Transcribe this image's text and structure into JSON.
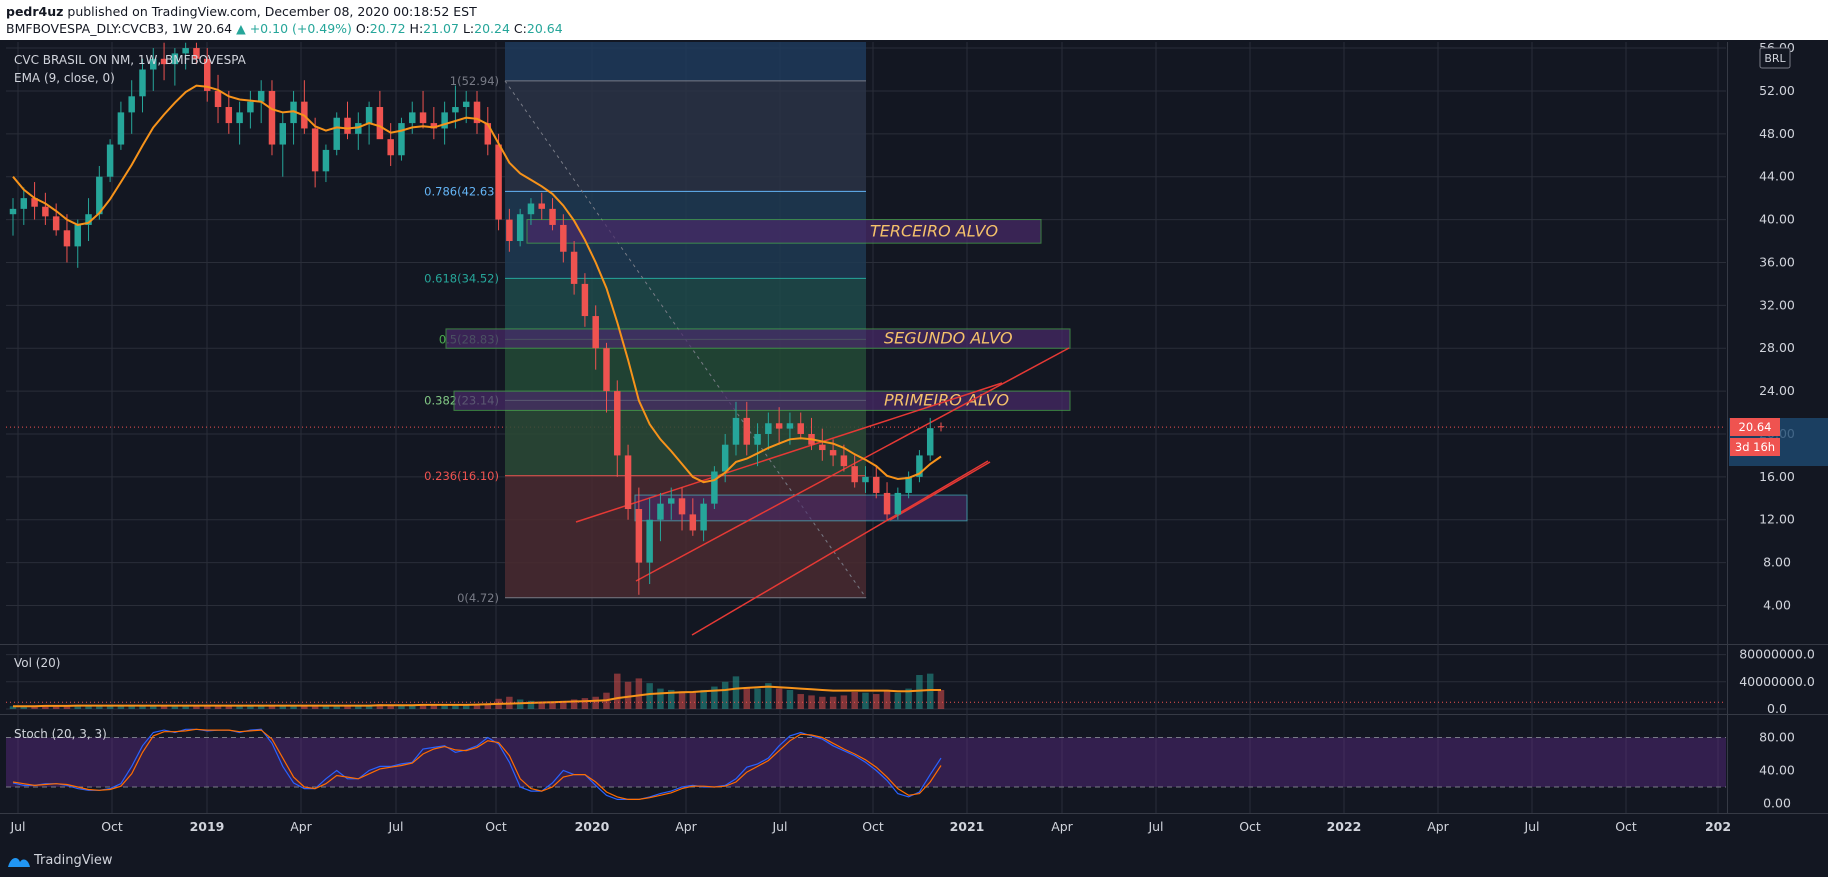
{
  "header": {
    "publisher": "pedr4uz",
    "published_text": " published on TradingView.com, December 08, 2020 00:18:52 EST",
    "symbol": "BMFBOVESPA_DLY:CVCB3, 1W",
    "last": "20.64",
    "change": "▲ +0.10 (+0.49%)",
    "o_label": "O:",
    "o": "20.72",
    "h_label": "H:",
    "h": "21.07",
    "l_label": "L:",
    "l": "20.24",
    "c_label": "C:",
    "c": "20.64"
  },
  "legend": {
    "title": "CVC BRASIL ON NM, 1W, BMFBOVESPA",
    "ema": "EMA (9, close, 0)",
    "vol": "Vol (20)",
    "stoch": "Stoch (20, 3, 3)",
    "currency": "BRL"
  },
  "price_tag": {
    "value": "20.64",
    "countdown": "3d 16h"
  },
  "footer": {
    "brand": "TradingView"
  },
  "colors": {
    "bg": "#131722",
    "up": "#26a69a",
    "down": "#ef5350",
    "ema": "#f7931a",
    "k_line": "#2962ff",
    "d_line": "#ff6d00",
    "stoch_band": "#5b2a86",
    "zone_box_border": "#4caf50",
    "target_text": "#f5c26b"
  },
  "chart_data": [
    {
      "type": "candlestick",
      "name": "price",
      "x_ticks": [
        "Jul",
        "Oct",
        "2019",
        "Apr",
        "Jul",
        "Oct",
        "2020",
        "Apr",
        "Jul",
        "Oct",
        "2021",
        "Apr",
        "Jul",
        "Oct",
        "2022",
        "Apr",
        "Jul",
        "Oct",
        "202"
      ],
      "y_ticks": [
        "56.00",
        "52.00",
        "48.00",
        "44.00",
        "40.00",
        "36.00",
        "32.00",
        "28.00",
        "24.00",
        "20.00",
        "16.00",
        "12.00",
        "8.00",
        "4.00"
      ],
      "ylim": [
        1.6,
        56.2
      ],
      "candles": [
        [
          40.5,
          42,
          38.5,
          41
        ],
        [
          41,
          43,
          39.5,
          42
        ],
        [
          42,
          43.5,
          40,
          41.2
        ],
        [
          41.2,
          42.5,
          39.5,
          40.3
        ],
        [
          40.3,
          41.5,
          38.5,
          39
        ],
        [
          39,
          40.5,
          36,
          37.5
        ],
        [
          37.5,
          40,
          35.5,
          39.5
        ],
        [
          39.5,
          42,
          38,
          40.5
        ],
        [
          40.5,
          45,
          40,
          44
        ],
        [
          44,
          47.5,
          43.5,
          47
        ],
        [
          47,
          51,
          46.5,
          50
        ],
        [
          50,
          53,
          48,
          51.5
        ],
        [
          51.5,
          55,
          50,
          54
        ],
        [
          54,
          56,
          52,
          55
        ],
        [
          55,
          56.5,
          53,
          54.5
        ],
        [
          54.5,
          56,
          52.5,
          55.5
        ],
        [
          55.5,
          56.5,
          54,
          56
        ],
        [
          56,
          56.5,
          54.5,
          55
        ],
        [
          55,
          56,
          51,
          52
        ],
        [
          52,
          53.5,
          49,
          50.5
        ],
        [
          50.5,
          52,
          48,
          49
        ],
        [
          49,
          51,
          47,
          50
        ],
        [
          50,
          52,
          48.5,
          51
        ],
        [
          51,
          53,
          49,
          52
        ],
        [
          52,
          53,
          46,
          47
        ],
        [
          47,
          50,
          44,
          49
        ],
        [
          49,
          52,
          47,
          51
        ],
        [
          51,
          53,
          48,
          48.5
        ],
        [
          48.5,
          49.5,
          43,
          44.5
        ],
        [
          44.5,
          47,
          43.5,
          46.5
        ],
        [
          46.5,
          50,
          46,
          49.5
        ],
        [
          49.5,
          51,
          47.5,
          48
        ],
        [
          48,
          50,
          46.5,
          49
        ],
        [
          49,
          51,
          47,
          50.5
        ],
        [
          50.5,
          52,
          48,
          47.5
        ],
        [
          47.5,
          49,
          45,
          46
        ],
        [
          46,
          49.5,
          45.5,
          49
        ],
        [
          49,
          51,
          48,
          50
        ],
        [
          50,
          52,
          48.5,
          49
        ],
        [
          49,
          50.5,
          47.5,
          48.5
        ],
        [
          48.5,
          51,
          47,
          50
        ],
        [
          50,
          52.5,
          48.5,
          50.5
        ],
        [
          50.5,
          52,
          49,
          51
        ],
        [
          51,
          52,
          48,
          49
        ],
        [
          49,
          50.5,
          46,
          47
        ],
        [
          47,
          48,
          39,
          40
        ],
        [
          40,
          41,
          37,
          38
        ],
        [
          38,
          41,
          37.5,
          40.5
        ],
        [
          40.5,
          42,
          39.5,
          41.5
        ],
        [
          41.5,
          42.5,
          40,
          41
        ],
        [
          41,
          42,
          39,
          39.5
        ],
        [
          39.5,
          40.5,
          36,
          37
        ],
        [
          37,
          38,
          33,
          34
        ],
        [
          34,
          35,
          30,
          31
        ],
        [
          31,
          32,
          26,
          28
        ],
        [
          28,
          28.5,
          22,
          24
        ],
        [
          24,
          25,
          16,
          18
        ],
        [
          18,
          19,
          12,
          13
        ],
        [
          13,
          15,
          5,
          8
        ],
        [
          8,
          14,
          6,
          12
        ],
        [
          12,
          14.5,
          10,
          13.5
        ],
        [
          13.5,
          15,
          12,
          14
        ],
        [
          14,
          15,
          11,
          12.5
        ],
        [
          12.5,
          14,
          10.5,
          11
        ],
        [
          11,
          14,
          10,
          13.5
        ],
        [
          13.5,
          17,
          13,
          16.5
        ],
        [
          16.5,
          20,
          15.5,
          19
        ],
        [
          19,
          23,
          18,
          21.5
        ],
        [
          21.5,
          23,
          18,
          19
        ],
        [
          19,
          21,
          17,
          20
        ],
        [
          20,
          22,
          18.5,
          21
        ],
        [
          21,
          22.5,
          19,
          20.5
        ],
        [
          20.5,
          22,
          19,
          21
        ],
        [
          21,
          22,
          19.5,
          20
        ],
        [
          20,
          21.5,
          18.5,
          19
        ],
        [
          19,
          20.5,
          17.5,
          18.5
        ],
        [
          18.5,
          19.5,
          17,
          18
        ],
        [
          18,
          19,
          16.5,
          17
        ],
        [
          17,
          18,
          15,
          15.5
        ],
        [
          15.5,
          17,
          14.5,
          16
        ],
        [
          16,
          17,
          14,
          14.5
        ],
        [
          14.5,
          15.5,
          12,
          12.5
        ],
        [
          12.5,
          15,
          12,
          14.5
        ],
        [
          14.5,
          16.5,
          14,
          16
        ],
        [
          16,
          18.5,
          15.5,
          18
        ],
        [
          18,
          21.5,
          17.5,
          20.54
        ],
        [
          20.72,
          21.07,
          20.24,
          20.64
        ]
      ],
      "ema": [
        44,
        42.8,
        42,
        41.5,
        40.8,
        40,
        39.5,
        39.7,
        40.6,
        41.9,
        43.5,
        45.1,
        46.9,
        48.6,
        49.8,
        50.9,
        51.9,
        52.5,
        52.4,
        52.1,
        51.5,
        51.2,
        51.1,
        51,
        50.3,
        50,
        50.1,
        49.7,
        48.7,
        48.3,
        48.6,
        48.5,
        48.6,
        49,
        48.7,
        48.1,
        48.3,
        48.6,
        48.7,
        48.6,
        48.9,
        49.2,
        49.5,
        49.4,
        48.9,
        47.1,
        45.3,
        44.3,
        43.7,
        43.1,
        42.4,
        41.3,
        39.9,
        38.1,
        36,
        33.6,
        30.4,
        26.9,
        23.1,
        20.9,
        19.5,
        18.4,
        17.2,
        16,
        15.5,
        15.7,
        16.4,
        17.4,
        17.7,
        18.2,
        18.7,
        19.1,
        19.5,
        19.6,
        19.5,
        19.3,
        19.1,
        18.7,
        18.1,
        17.6,
        17,
        16.1,
        15.8,
        15.9,
        16.3,
        17.2,
        17.9
      ]
    },
    {
      "type": "bar",
      "name": "Vol (20)",
      "y_ticks": [
        "80000000.0",
        "40000000.0",
        "0.0"
      ],
      "ylim": [
        0,
        86000000
      ],
      "values": [
        4,
        5,
        4,
        5,
        4,
        5,
        6,
        4,
        5,
        4,
        5,
        6,
        5,
        4,
        5,
        4,
        6,
        5,
        4,
        5,
        5,
        4,
        6,
        5,
        5,
        4,
        5,
        4,
        6,
        5,
        4,
        5,
        6,
        5,
        7,
        6,
        5,
        6,
        7,
        6,
        5,
        6,
        6,
        7,
        8,
        15,
        18,
        14,
        12,
        10,
        11,
        12,
        14,
        16,
        18,
        24,
        52,
        40,
        45,
        38,
        30,
        28,
        26,
        24,
        28,
        33,
        40,
        48,
        32,
        30,
        38,
        30,
        28,
        22,
        20,
        18,
        18,
        20,
        25,
        24,
        22,
        26,
        24,
        30,
        50,
        52,
        28
      ],
      "ma": [
        4,
        4,
        4,
        4.5,
        4.5,
        4.5,
        5,
        5,
        5,
        5,
        5,
        5,
        5,
        5,
        5,
        5,
        5,
        5,
        5,
        5,
        5,
        5,
        5,
        5,
        5,
        5,
        5,
        5,
        5,
        5,
        5,
        5,
        5,
        5,
        5.5,
        5.5,
        5.5,
        5.5,
        6,
        6,
        6,
        6,
        6,
        6.5,
        7,
        7.5,
        8,
        8.5,
        9,
        9.5,
        10,
        10.5,
        11,
        11.5,
        12,
        13,
        16,
        18,
        20,
        22,
        23,
        24,
        24.5,
        25,
        26,
        27,
        28,
        30,
        31,
        32,
        33,
        32,
        31,
        30,
        29,
        28,
        27,
        27,
        27,
        27,
        27,
        27,
        26,
        26,
        27,
        28,
        28
      ]
    },
    {
      "type": "line",
      "name": "Stoch (20, 3, 3)",
      "y_ticks": [
        "80.00",
        "40.00",
        "0.00"
      ],
      "ylim": [
        -5,
        100
      ],
      "bands": [
        80,
        20
      ],
      "k": [
        25,
        22,
        22,
        24,
        24,
        22,
        18,
        16,
        16,
        18,
        24,
        45,
        70,
        86,
        89,
        86,
        90,
        90,
        88,
        89,
        89,
        86,
        89,
        90,
        73,
        45,
        25,
        18,
        18,
        30,
        40,
        30,
        30,
        40,
        45,
        45,
        48,
        50,
        66,
        68,
        70,
        62,
        65,
        70,
        80,
        72,
        50,
        20,
        15,
        15,
        25,
        40,
        35,
        35,
        22,
        10,
        5,
        5,
        5,
        8,
        12,
        15,
        20,
        22,
        20,
        20,
        22,
        30,
        44,
        48,
        55,
        70,
        82,
        86,
        82,
        78,
        70,
        64,
        58,
        50,
        40,
        28,
        12,
        8,
        14,
        35,
        55
      ],
      "d": [
        26,
        24,
        22,
        23,
        24,
        23,
        20,
        17,
        16,
        17,
        21,
        36,
        62,
        82,
        87,
        87,
        88,
        90,
        89,
        89,
        89,
        87,
        88,
        89,
        78,
        55,
        32,
        20,
        18,
        24,
        34,
        32,
        30,
        36,
        42,
        44,
        46,
        49,
        60,
        66,
        69,
        65,
        64,
        68,
        76,
        74,
        58,
        30,
        18,
        15,
        20,
        32,
        35,
        35,
        26,
        14,
        8,
        5,
        5,
        7,
        10,
        13,
        18,
        21,
        21,
        20,
        21,
        26,
        38,
        45,
        52,
        64,
        76,
        84,
        83,
        80,
        73,
        66,
        60,
        53,
        44,
        32,
        18,
        10,
        12,
        26,
        46
      ]
    }
  ],
  "drawings": {
    "fib_labels": [
      "1(52.94)",
      "0.786(42.63)",
      "0.618(34.52)",
      "0.5(28.83)",
      "0.382(23.14)",
      "0.236(16.10)",
      "0(4.72)"
    ],
    "fib_levels": [
      52.94,
      42.63,
      34.52,
      28.83,
      23.14,
      16.1,
      4.72
    ],
    "targets": [
      "TERCEIRO ALVO",
      "SEGUNDO ALVO",
      "PRIMEIRO ALVO"
    ]
  }
}
